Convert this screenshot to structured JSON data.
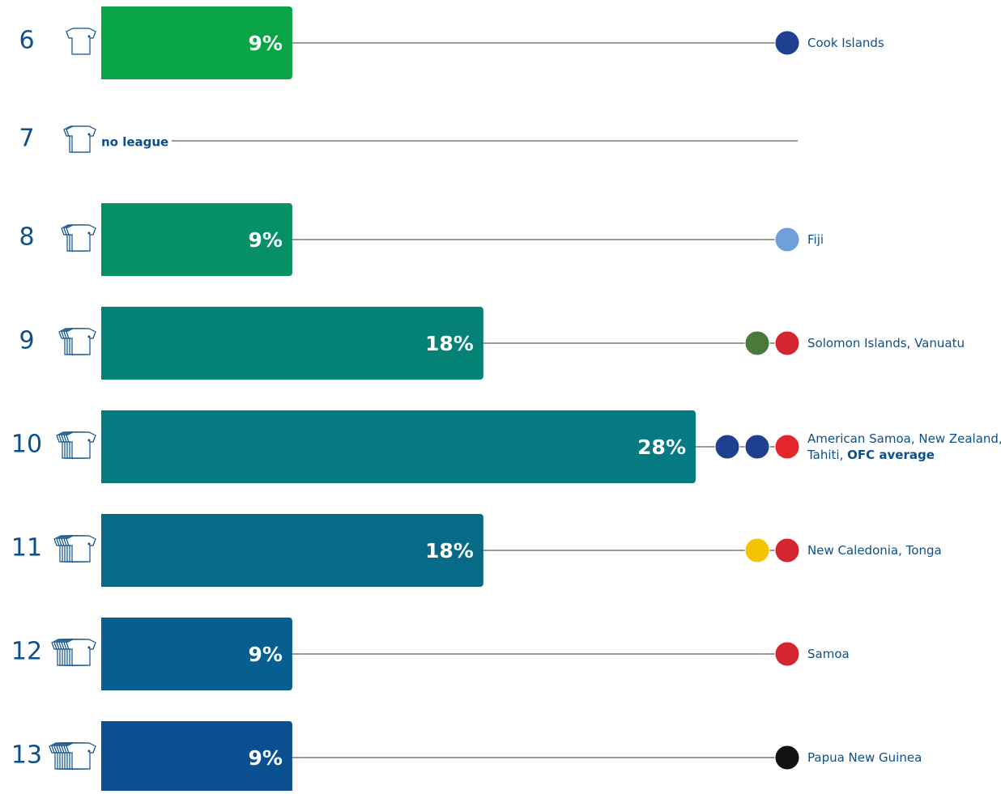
{
  "chart_data": {
    "type": "bar",
    "orientation": "horizontal",
    "categories": [
      "6",
      "7",
      "8",
      "9",
      "10",
      "11",
      "12",
      "13"
    ],
    "values": [
      9,
      null,
      9,
      18,
      28,
      18,
      9,
      9
    ],
    "value_labels": [
      "9%",
      null,
      "9%",
      "18%",
      "28%",
      "18%",
      "9%",
      "9%"
    ],
    "colors": [
      "#08a446",
      null,
      "#078f66",
      "#058276",
      "#067a82",
      "#076b88",
      "#065f90",
      "#0a4f8f"
    ],
    "empty_label": "no league",
    "xlim": [
      0,
      28
    ],
    "country_labels": [
      [
        [
          {
            "text": "Cook Islands",
            "bold": false
          }
        ]
      ],
      null,
      [
        [
          {
            "text": "Fiji",
            "bold": false
          }
        ]
      ],
      [
        [
          {
            "text": "Solomon Islands, Vanuatu",
            "bold": false
          }
        ]
      ],
      [
        [
          {
            "text": "American Samoa, New Zealand,",
            "bold": false
          }
        ],
        [
          {
            "text": "Tahiti, ",
            "bold": false
          },
          {
            "text": "OFC average",
            "bold": true
          }
        ]
      ],
      [
        [
          {
            "text": "New Caledonia, Tonga",
            "bold": false
          }
        ]
      ],
      [
        [
          {
            "text": "Samoa",
            "bold": false
          }
        ]
      ],
      [
        [
          {
            "text": "Papua New Guinea",
            "bold": false
          }
        ]
      ]
    ]
  }
}
